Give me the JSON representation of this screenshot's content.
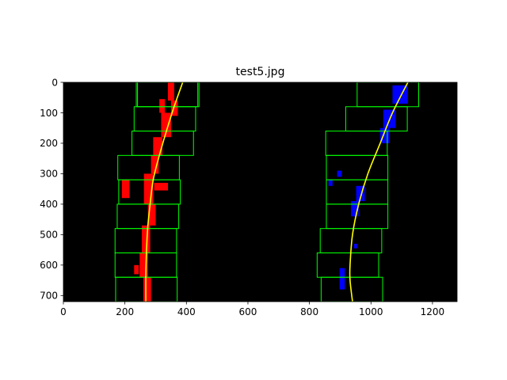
{
  "chart_data": {
    "type": "image",
    "title": "test5.jpg",
    "xlim": [
      0,
      1280
    ],
    "ylim": [
      720,
      0
    ],
    "y_inverted": true,
    "x_ticks": [
      0,
      200,
      400,
      600,
      800,
      1000,
      1200
    ],
    "y_ticks": [
      0,
      100,
      200,
      300,
      400,
      500,
      600,
      700
    ],
    "grid": false,
    "background_color": "#000000",
    "colors": {
      "left_lane_pixels": "#ff0000",
      "right_lane_pixels": "#0000ff",
      "window_boxes": "#00ff00",
      "fit_curves": "#ffff00"
    },
    "window_height": 80,
    "left_windows": [
      {
        "x": [
          241,
          441
        ],
        "y": [
          0,
          80
        ]
      },
      {
        "x": [
          237,
          437
        ],
        "y": [
          0,
          80
        ]
      },
      {
        "x": [
          230,
          430
        ],
        "y": [
          80,
          160
        ]
      },
      {
        "x": [
          223,
          423
        ],
        "y": [
          160,
          240
        ]
      },
      {
        "x": [
          177,
          377
        ],
        "y": [
          240,
          320
        ]
      },
      {
        "x": [
          180,
          380
        ],
        "y": [
          320,
          400
        ]
      },
      {
        "x": [
          175,
          375
        ],
        "y": [
          400,
          480
        ]
      },
      {
        "x": [
          168,
          368
        ],
        "y": [
          480,
          560
        ]
      },
      {
        "x": [
          168,
          368
        ],
        "y": [
          560,
          640
        ]
      },
      {
        "x": [
          170,
          370
        ],
        "y": [
          640,
          720
        ]
      }
    ],
    "right_windows": [
      {
        "x": [
          955,
          1155
        ],
        "y": [
          0,
          80
        ]
      },
      {
        "x": [
          918,
          1118
        ],
        "y": [
          80,
          160
        ]
      },
      {
        "x": [
          853,
          1053
        ],
        "y": [
          160,
          240
        ]
      },
      {
        "x": [
          855,
          1055
        ],
        "y": [
          240,
          320
        ]
      },
      {
        "x": [
          855,
          1055
        ],
        "y": [
          320,
          400
        ]
      },
      {
        "x": [
          855,
          1055
        ],
        "y": [
          400,
          480
        ]
      },
      {
        "x": [
          835,
          1035
        ],
        "y": [
          480,
          560
        ]
      },
      {
        "x": [
          825,
          1025
        ],
        "y": [
          560,
          640
        ]
      },
      {
        "x": [
          838,
          1038
        ],
        "y": [
          640,
          720
        ]
      }
    ],
    "left_fit_curve": [
      {
        "x": 388,
        "y": 0
      },
      {
        "x": 360,
        "y": 80
      },
      {
        "x": 335,
        "y": 160
      },
      {
        "x": 312,
        "y": 240
      },
      {
        "x": 292,
        "y": 320
      },
      {
        "x": 282,
        "y": 400
      },
      {
        "x": 274,
        "y": 480
      },
      {
        "x": 270,
        "y": 560
      },
      {
        "x": 268,
        "y": 640
      },
      {
        "x": 268,
        "y": 720
      }
    ],
    "right_fit_curve": [
      {
        "x": 1120,
        "y": 0
      },
      {
        "x": 1070,
        "y": 100
      },
      {
        "x": 1030,
        "y": 200
      },
      {
        "x": 990,
        "y": 300
      },
      {
        "x": 960,
        "y": 400
      },
      {
        "x": 940,
        "y": 500
      },
      {
        "x": 932,
        "y": 600
      },
      {
        "x": 932,
        "y": 650
      },
      {
        "x": 940,
        "y": 720
      }
    ],
    "left_lane_pixels": [
      {
        "x": [
          340,
          360
        ],
        "y": [
          0,
          60
        ]
      },
      {
        "x": [
          312,
          330
        ],
        "y": [
          55,
          100
        ]
      },
      {
        "x": [
          350,
          372
        ],
        "y": [
          60,
          110
        ]
      },
      {
        "x": [
          318,
          350
        ],
        "y": [
          100,
          180
        ]
      },
      {
        "x": [
          292,
          322
        ],
        "y": [
          180,
          240
        ]
      },
      {
        "x": [
          285,
          310
        ],
        "y": [
          240,
          300
        ]
      },
      {
        "x": [
          190,
          215
        ],
        "y": [
          320,
          380
        ]
      },
      {
        "x": [
          295,
          340
        ],
        "y": [
          330,
          355
        ]
      },
      {
        "x": [
          262,
          292
        ],
        "y": [
          300,
          400
        ]
      },
      {
        "x": [
          275,
          300
        ],
        "y": [
          400,
          470
        ]
      },
      {
        "x": [
          255,
          282
        ],
        "y": [
          470,
          560
        ]
      },
      {
        "x": [
          248,
          275
        ],
        "y": [
          560,
          640
        ]
      },
      {
        "x": [
          260,
          285
        ],
        "y": [
          640,
          720
        ]
      },
      {
        "x": [
          230,
          245
        ],
        "y": [
          600,
          630
        ]
      }
    ],
    "right_lane_pixels": [
      {
        "x": [
          1070,
          1120
        ],
        "y": [
          10,
          70
        ]
      },
      {
        "x": [
          1040,
          1080
        ],
        "y": [
          90,
          150
        ]
      },
      {
        "x": [
          1030,
          1060
        ],
        "y": [
          150,
          200
        ]
      },
      {
        "x": [
          890,
          905
        ],
        "y": [
          290,
          310
        ]
      },
      {
        "x": [
          862,
          875
        ],
        "y": [
          320,
          340
        ]
      },
      {
        "x": [
          952,
          980
        ],
        "y": [
          340,
          390
        ]
      },
      {
        "x": [
          935,
          960
        ],
        "y": [
          390,
          440
        ]
      },
      {
        "x": [
          945,
          955
        ],
        "y": [
          530,
          545
        ]
      },
      {
        "x": [
          898,
          915
        ],
        "y": [
          610,
          680
        ]
      }
    ]
  }
}
